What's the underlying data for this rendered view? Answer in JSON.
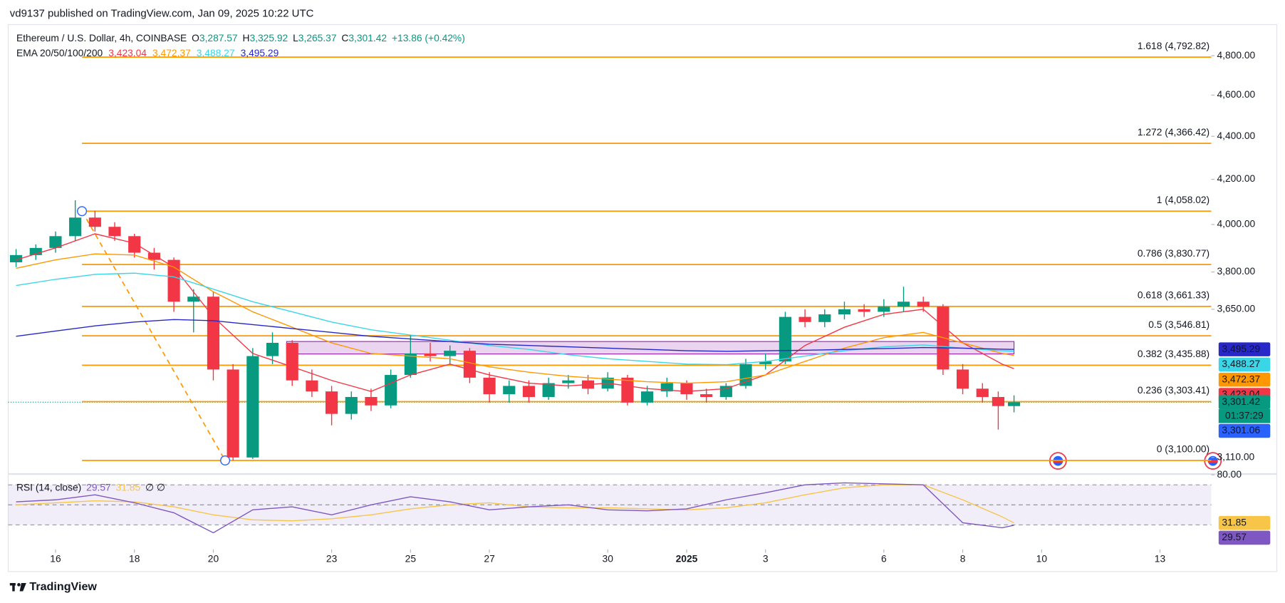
{
  "header": {
    "publisher": "vd9137 published on TradingView.com, Jan 09, 2025 10:22 UTC"
  },
  "footer": {
    "brand": "TradingView"
  },
  "chart_data": {
    "type": "candlestick",
    "title": "Ethereum / U.S. Dollar, 4h, COINBASE",
    "ohlc_legend": [
      {
        "key": "O",
        "value": "3,287.57"
      },
      {
        "key": "H",
        "value": "3,325.92"
      },
      {
        "key": "L",
        "value": "3,265.37"
      },
      {
        "key": "C",
        "value": "3,301.42"
      }
    ],
    "change": "+13.86 (+0.42%)",
    "up_color": "#089981",
    "down_color": "#f23645",
    "xlim": [
      -1.2,
      29.3
    ],
    "xticks": [
      {
        "value": 0,
        "label": "16"
      },
      {
        "value": 2,
        "label": "18"
      },
      {
        "value": 4,
        "label": "20"
      },
      {
        "value": 7,
        "label": "23"
      },
      {
        "value": 9,
        "label": "25"
      },
      {
        "value": 11,
        "label": "27"
      },
      {
        "value": 14,
        "label": "30"
      },
      {
        "value": 16,
        "label": "2025"
      },
      {
        "value": 18,
        "label": "3"
      },
      {
        "value": 21,
        "label": "6"
      },
      {
        "value": 23,
        "label": "8"
      },
      {
        "value": 25,
        "label": "10"
      },
      {
        "value": 28,
        "label": "13"
      }
    ],
    "ylim": [
      3055,
      4964
    ],
    "log_scale": true,
    "yticks": [
      {
        "value": 4800,
        "label": "4,800.00"
      },
      {
        "value": 4600,
        "label": "4,600.00"
      },
      {
        "value": 4400,
        "label": "4,400.00"
      },
      {
        "value": 4200,
        "label": "4,200.00"
      },
      {
        "value": 4000,
        "label": "4,000.00"
      },
      {
        "value": 3800,
        "label": "3,800.00"
      },
      {
        "value": 3650,
        "label": "3,650.00"
      },
      {
        "value": 3110,
        "label": "3,110.00"
      }
    ],
    "candles": [
      {
        "x": -1.0,
        "open": 3840,
        "high": 3895,
        "low": 3820,
        "close": 3870
      },
      {
        "x": -0.5,
        "open": 3870,
        "high": 3915,
        "low": 3850,
        "close": 3900
      },
      {
        "x": 0.0,
        "open": 3900,
        "high": 3970,
        "low": 3880,
        "close": 3950
      },
      {
        "x": 0.5,
        "open": 3950,
        "high": 4106,
        "low": 3930,
        "close": 4030
      },
      {
        "x": 1.0,
        "open": 4030,
        "high": 4060,
        "low": 3970,
        "close": 3990
      },
      {
        "x": 1.5,
        "open": 3990,
        "high": 4010,
        "low": 3930,
        "close": 3950
      },
      {
        "x": 2.0,
        "open": 3950,
        "high": 3960,
        "low": 3860,
        "close": 3880
      },
      {
        "x": 2.5,
        "open": 3880,
        "high": 3900,
        "low": 3810,
        "close": 3850
      },
      {
        "x": 3.0,
        "open": 3850,
        "high": 3860,
        "low": 3640,
        "close": 3680
      },
      {
        "x": 3.5,
        "open": 3680,
        "high": 3730,
        "low": 3560,
        "close": 3700
      },
      {
        "x": 4.0,
        "open": 3700,
        "high": 3720,
        "low": 3380,
        "close": 3420
      },
      {
        "x": 4.5,
        "open": 3420,
        "high": 3440,
        "low": 3100,
        "close": 3110
      },
      {
        "x": 5.0,
        "open": 3110,
        "high": 3500,
        "low": 3105,
        "close": 3470
      },
      {
        "x": 5.5,
        "open": 3470,
        "high": 3560,
        "low": 3440,
        "close": 3520
      },
      {
        "x": 6.0,
        "open": 3520,
        "high": 3530,
        "low": 3360,
        "close": 3380
      },
      {
        "x": 6.5,
        "open": 3380,
        "high": 3420,
        "low": 3320,
        "close": 3340
      },
      {
        "x": 7.0,
        "open": 3340,
        "high": 3360,
        "low": 3220,
        "close": 3260
      },
      {
        "x": 7.5,
        "open": 3260,
        "high": 3340,
        "low": 3240,
        "close": 3320
      },
      {
        "x": 8.0,
        "open": 3320,
        "high": 3350,
        "low": 3270,
        "close": 3290
      },
      {
        "x": 8.5,
        "open": 3290,
        "high": 3420,
        "low": 3280,
        "close": 3400
      },
      {
        "x": 9.0,
        "open": 3400,
        "high": 3550,
        "low": 3390,
        "close": 3480
      },
      {
        "x": 9.5,
        "open": 3480,
        "high": 3520,
        "low": 3450,
        "close": 3470
      },
      {
        "x": 10.0,
        "open": 3470,
        "high": 3510,
        "low": 3440,
        "close": 3490
      },
      {
        "x": 10.5,
        "open": 3490,
        "high": 3500,
        "low": 3370,
        "close": 3390
      },
      {
        "x": 11.0,
        "open": 3390,
        "high": 3410,
        "low": 3300,
        "close": 3330
      },
      {
        "x": 11.5,
        "open": 3330,
        "high": 3380,
        "low": 3300,
        "close": 3360
      },
      {
        "x": 12.0,
        "open": 3360,
        "high": 3380,
        "low": 3300,
        "close": 3320
      },
      {
        "x": 12.5,
        "open": 3320,
        "high": 3390,
        "low": 3310,
        "close": 3370
      },
      {
        "x": 13.0,
        "open": 3370,
        "high": 3400,
        "low": 3350,
        "close": 3380
      },
      {
        "x": 13.5,
        "open": 3380,
        "high": 3400,
        "low": 3330,
        "close": 3350
      },
      {
        "x": 14.0,
        "open": 3350,
        "high": 3410,
        "low": 3340,
        "close": 3390
      },
      {
        "x": 14.5,
        "open": 3390,
        "high": 3400,
        "low": 3290,
        "close": 3300
      },
      {
        "x": 15.0,
        "open": 3300,
        "high": 3360,
        "low": 3290,
        "close": 3340
      },
      {
        "x": 15.5,
        "open": 3340,
        "high": 3390,
        "low": 3320,
        "close": 3370
      },
      {
        "x": 16.0,
        "open": 3370,
        "high": 3380,
        "low": 3310,
        "close": 3330
      },
      {
        "x": 16.5,
        "open": 3330,
        "high": 3350,
        "low": 3300,
        "close": 3320
      },
      {
        "x": 17.0,
        "open": 3320,
        "high": 3370,
        "low": 3310,
        "close": 3360
      },
      {
        "x": 17.5,
        "open": 3360,
        "high": 3460,
        "low": 3350,
        "close": 3440
      },
      {
        "x": 18.0,
        "open": 3440,
        "high": 3480,
        "low": 3420,
        "close": 3450
      },
      {
        "x": 18.5,
        "open": 3450,
        "high": 3640,
        "low": 3440,
        "close": 3620
      },
      {
        "x": 19.0,
        "open": 3620,
        "high": 3650,
        "low": 3580,
        "close": 3600
      },
      {
        "x": 19.5,
        "open": 3600,
        "high": 3650,
        "low": 3580,
        "close": 3630
      },
      {
        "x": 20.0,
        "open": 3630,
        "high": 3680,
        "low": 3610,
        "close": 3650
      },
      {
        "x": 20.5,
        "open": 3650,
        "high": 3670,
        "low": 3620,
        "close": 3640
      },
      {
        "x": 21.0,
        "open": 3640,
        "high": 3690,
        "low": 3620,
        "close": 3660
      },
      {
        "x": 21.5,
        "open": 3660,
        "high": 3740,
        "low": 3640,
        "close": 3680
      },
      {
        "x": 22.0,
        "open": 3680,
        "high": 3700,
        "low": 3640,
        "close": 3660
      },
      {
        "x": 22.5,
        "open": 3660,
        "high": 3670,
        "low": 3400,
        "close": 3420
      },
      {
        "x": 23.0,
        "open": 3420,
        "high": 3440,
        "low": 3330,
        "close": 3350
      },
      {
        "x": 23.5,
        "open": 3350,
        "high": 3370,
        "low": 3300,
        "close": 3320
      },
      {
        "x": 23.9,
        "open": 3320,
        "high": 3340,
        "low": 3205,
        "close": 3287.57
      },
      {
        "x": 24.3,
        "open": 3287.57,
        "high": 3325.92,
        "low": 3265.37,
        "close": 3301.42
      }
    ],
    "ema": {
      "name": "EMA 20/50/100/200",
      "x": [
        -1,
        0,
        1,
        2,
        3,
        4,
        5,
        6,
        7,
        8,
        9,
        10,
        11,
        12,
        13,
        14,
        15,
        16,
        17,
        18,
        19,
        20,
        21,
        22,
        23,
        24,
        24.3
      ],
      "series": [
        {
          "color": "#f23645",
          "last_label": "3,423.04",
          "values": [
            3850,
            3900,
            3960,
            3920,
            3820,
            3620,
            3480,
            3430,
            3380,
            3340,
            3400,
            3440,
            3400,
            3370,
            3360,
            3370,
            3350,
            3340,
            3350,
            3400,
            3510,
            3580,
            3630,
            3650,
            3520,
            3440,
            3423.04
          ]
        },
        {
          "color": "#ff9800",
          "last_label": "3,472.37",
          "values": [
            3815,
            3850,
            3875,
            3870,
            3820,
            3720,
            3640,
            3580,
            3520,
            3480,
            3470,
            3460,
            3430,
            3410,
            3395,
            3385,
            3375,
            3370,
            3375,
            3400,
            3450,
            3500,
            3540,
            3560,
            3520,
            3480,
            3472.37
          ]
        },
        {
          "color": "#3ad6e8",
          "last_label": "3,488.27",
          "values": [
            3745,
            3770,
            3790,
            3795,
            3780,
            3730,
            3680,
            3640,
            3600,
            3570,
            3550,
            3530,
            3510,
            3495,
            3475,
            3460,
            3450,
            3440,
            3438,
            3450,
            3470,
            3490,
            3505,
            3512,
            3500,
            3490,
            3488.27
          ]
        },
        {
          "color": "#2828c8",
          "last_label": "3,495.29",
          "values": [
            3545,
            3565,
            3585,
            3600,
            3610,
            3605,
            3590,
            3575,
            3560,
            3545,
            3535,
            3525,
            3515,
            3510,
            3505,
            3500,
            3495,
            3490,
            3488,
            3490,
            3492,
            3495,
            3498,
            3502,
            3500,
            3496,
            3495.29
          ]
        }
      ]
    },
    "price_labels": {
      "countdown": "01:37:29",
      "bid": {
        "value": 3301.06,
        "label": "3,301.06"
      },
      "bid_color": "#2962ff"
    },
    "fib": {
      "color": "#ff9800",
      "anchor_x": [
        0.67,
        4.3
      ],
      "levels": [
        {
          "value": 4792.82,
          "label": "1.618 (4,792.82)"
        },
        {
          "value": 4366.42,
          "label": "1.272 (4,366.42)"
        },
        {
          "value": 4058.02,
          "label": "1 (4,058.02)"
        },
        {
          "value": 3830.77,
          "label": "0.786 (3,830.77)"
        },
        {
          "value": 3661.33,
          "label": "0.618 (3,661.33)"
        },
        {
          "value": 3546.81,
          "label": "0.5 (3,546.81)"
        },
        {
          "value": 3435.88,
          "label": "0.382 (3,435.88)"
        },
        {
          "value": 3303.41,
          "label": "0.236 (3,303.41)"
        },
        {
          "value": 3100,
          "label": "0 (3,100.00)"
        }
      ]
    },
    "zone": {
      "x": [
        5.86,
        24.3
      ],
      "price": [
        3478,
        3525
      ],
      "color": "#9c27b0"
    },
    "rsi": {
      "title": "RSI (14, close)",
      "extra": "∅ ∅",
      "ylim": [
        7,
        80
      ],
      "yticks": [
        {
          "value": 80,
          "label": "80.00"
        }
      ],
      "levels": [
        70,
        50,
        30
      ],
      "x": [
        -1,
        0,
        1,
        2,
        3,
        4,
        5,
        6,
        7,
        8,
        9,
        10,
        11,
        12,
        13,
        14,
        15,
        16,
        17,
        18,
        19,
        20,
        21,
        22,
        23,
        24,
        24.3
      ],
      "series": [
        {
          "color": "#7e57c2",
          "last_label": "29.57",
          "values": [
            53,
            55,
            60,
            52,
            42,
            22,
            45,
            48,
            40,
            50,
            58,
            53,
            45,
            48,
            50,
            45,
            44,
            46,
            55,
            62,
            70,
            72,
            71,
            70,
            32,
            27,
            29.57
          ]
        },
        {
          "color": "#f7c548",
          "last_label": "31.85",
          "values": [
            50,
            52,
            54,
            53,
            48,
            40,
            35,
            34,
            36,
            40,
            46,
            50,
            52,
            48,
            47,
            47,
            46,
            45,
            47,
            52,
            60,
            67,
            70,
            70,
            55,
            38,
            31.85
          ]
        }
      ]
    }
  }
}
